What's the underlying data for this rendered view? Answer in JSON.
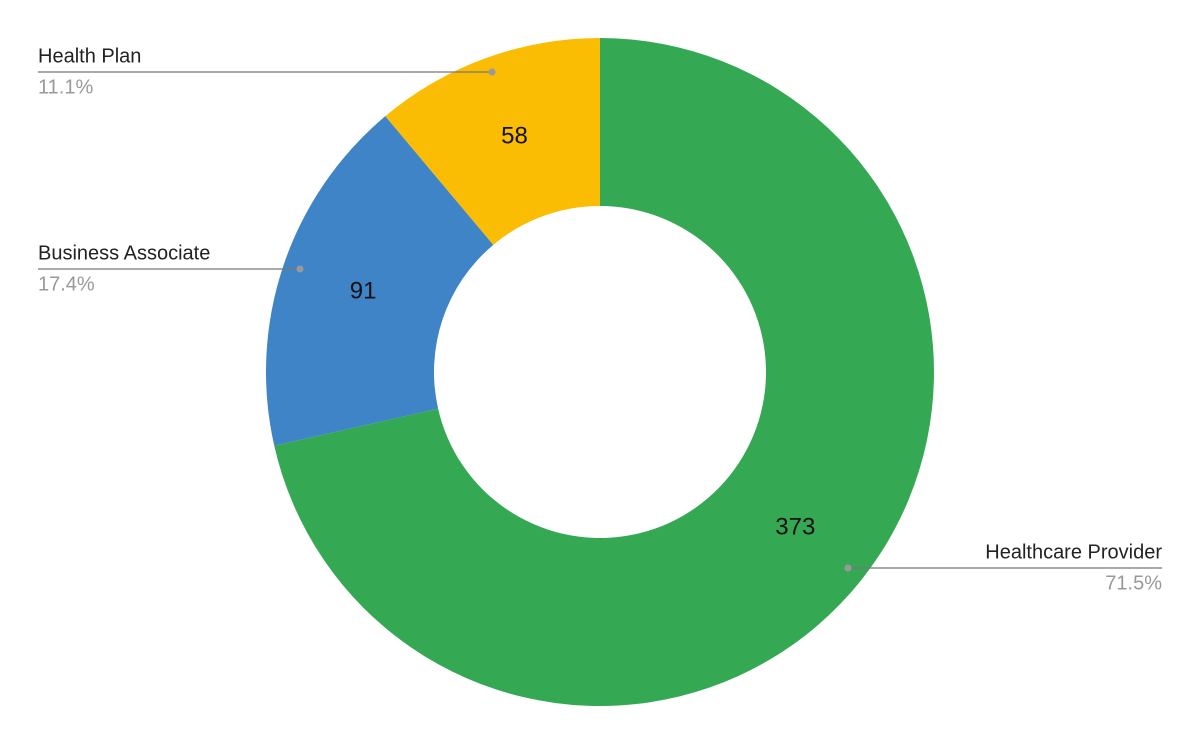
{
  "chart_data": {
    "type": "donut",
    "categories": [
      "Healthcare Provider",
      "Business Associate",
      "Health Plan"
    ],
    "values": [
      373,
      91,
      58
    ],
    "percentages": [
      {
        "value": 71.5,
        "label": "71.5%"
      },
      {
        "value": 17.4,
        "label": "17.4%"
      },
      {
        "value": 11.1,
        "label": "11.1%"
      }
    ],
    "colors": [
      "#34a853",
      "#3f84c7",
      "#fbbc04"
    ]
  }
}
